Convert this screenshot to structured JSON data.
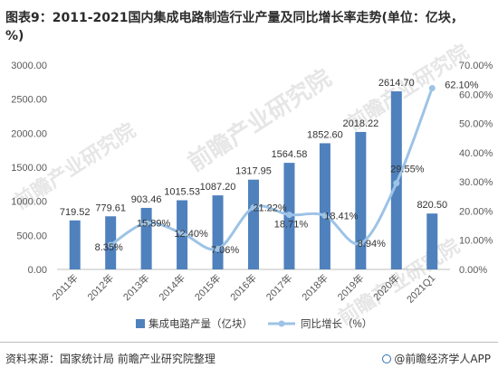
{
  "title": "图表9：2011-2021国内集成电路制造行业产量及同比增长率走势(单位：亿块，%)",
  "watermark": "前瞻产业研究院",
  "footer": {
    "source": "资料来源：国家统计局 前瞻产业研究院整理",
    "brand": "@前瞻经济学人APP"
  },
  "colors": {
    "bar": "#4f81bd",
    "line": "#9dc3e6",
    "text": "#595959",
    "grid": "#d9d9d9"
  },
  "chart_data": {
    "type": "bar+line",
    "categories": [
      "2011年",
      "2012年",
      "2013年",
      "2014年",
      "2015年",
      "2016年",
      "2017年",
      "2018年",
      "2019年",
      "2020年",
      "2021Q1"
    ],
    "series": [
      {
        "name": "集成电路产量（亿块）",
        "type": "bar",
        "axis": "left",
        "values": [
          719.52,
          779.61,
          903.46,
          1015.53,
          1087.2,
          1317.95,
          1564.58,
          1852.6,
          2018.22,
          2614.7,
          820.5
        ],
        "labels": [
          "719.52",
          "779.61",
          "903.46",
          "1015.53",
          "1087.20",
          "1317.95",
          "1564.58",
          "1852.60",
          "2018.22",
          "2614.70",
          "820.50"
        ]
      },
      {
        "name": "同比增长（%）",
        "type": "line",
        "axis": "right",
        "values": [
          null,
          8.35,
          15.89,
          12.4,
          7.06,
          21.22,
          18.71,
          18.41,
          8.94,
          29.55,
          62.1
        ],
        "labels": [
          "",
          "8.35%",
          "15.89%",
          "12.40%",
          "7.06%",
          "21.22%",
          "18.71%",
          "18.41%",
          "8.94%",
          "29.55%",
          "62.10%"
        ]
      }
    ],
    "y_left": {
      "min": 0,
      "max": 3000,
      "ticks": [
        "0.00",
        "500.00",
        "1000.00",
        "1500.00",
        "2000.00",
        "2500.00",
        "3000.00"
      ]
    },
    "y_right": {
      "min": 0,
      "max": 70,
      "ticks": [
        "0.00%",
        "10.00%",
        "20.00%",
        "30.00%",
        "40.00%",
        "50.00%",
        "60.00%",
        "70.00%"
      ]
    },
    "grid": false,
    "legend": "bottom"
  }
}
